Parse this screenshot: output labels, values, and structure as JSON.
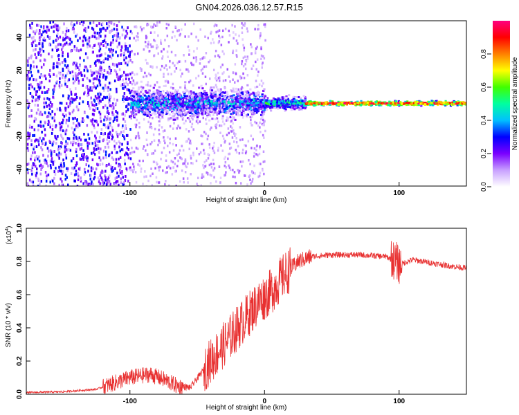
{
  "title": "GN04.2026.036.12.57.R15",
  "chart_data": [
    {
      "type": "heatmap",
      "xlabel": "Height of straight line (km)",
      "ylabel": "Frequency (Hz)",
      "xlim": [
        -177,
        150
      ],
      "ylim": [
        -50,
        50
      ],
      "xticks": [
        -100,
        0,
        100
      ],
      "yticks": [
        -40,
        -20,
        0,
        20,
        40
      ],
      "colorbar": {
        "label": "Normalized spectral amplitude",
        "ticks": [
          0.0,
          0.2,
          0.4,
          0.6,
          0.8
        ],
        "range": [
          0,
          1
        ],
        "colors": [
          "#ffffff",
          "#c8a0ff",
          "#7a00ff",
          "#0000ff",
          "#00c0ff",
          "#00ffa0",
          "#40ff00",
          "#ffff00",
          "#ff8000",
          "#ff0000",
          "#ff0080"
        ]
      },
      "regions": [
        {
          "x": [
            -177,
            -100
          ],
          "freq_spread": 50,
          "amplitude": 0.15
        },
        {
          "x": [
            -100,
            0
          ],
          "freq_spread": 7,
          "amplitude": 0.35
        },
        {
          "x": [
            0,
            30
          ],
          "freq_spread": 3,
          "amplitude": 0.45
        },
        {
          "x": [
            30,
            150
          ],
          "freq_spread": 1.5,
          "amplitude": 0.9
        }
      ]
    },
    {
      "type": "line",
      "xlabel": "Height of straight line (km)",
      "ylabel": "SNR (10 * v/v)",
      "yscale_label": "(x10",
      "yscale_exp": "4",
      "yscale_close": ")",
      "xlim": [
        -177,
        150
      ],
      "ylim": [
        0,
        1.0
      ],
      "xticks": [
        -100,
        0,
        100
      ],
      "yticks": [
        "0.0",
        "0.2",
        "0.4",
        "0.6",
        "0.8",
        "1.0"
      ],
      "color": "#e83030",
      "trend": {
        "x": [
          -177,
          -150,
          -125,
          -100,
          -85,
          -75,
          -65,
          -55,
          -45,
          -35,
          -25,
          -15,
          -5,
          5,
          15,
          25,
          35,
          50,
          70,
          90,
          98,
          100,
          110,
          125,
          140,
          150
        ],
        "y": [
          0.01,
          0.015,
          0.03,
          0.1,
          0.12,
          0.09,
          0.05,
          0.04,
          0.15,
          0.25,
          0.35,
          0.45,
          0.55,
          0.62,
          0.72,
          0.8,
          0.83,
          0.84,
          0.84,
          0.83,
          0.8,
          0.78,
          0.81,
          0.79,
          0.77,
          0.76
        ]
      }
    }
  ]
}
